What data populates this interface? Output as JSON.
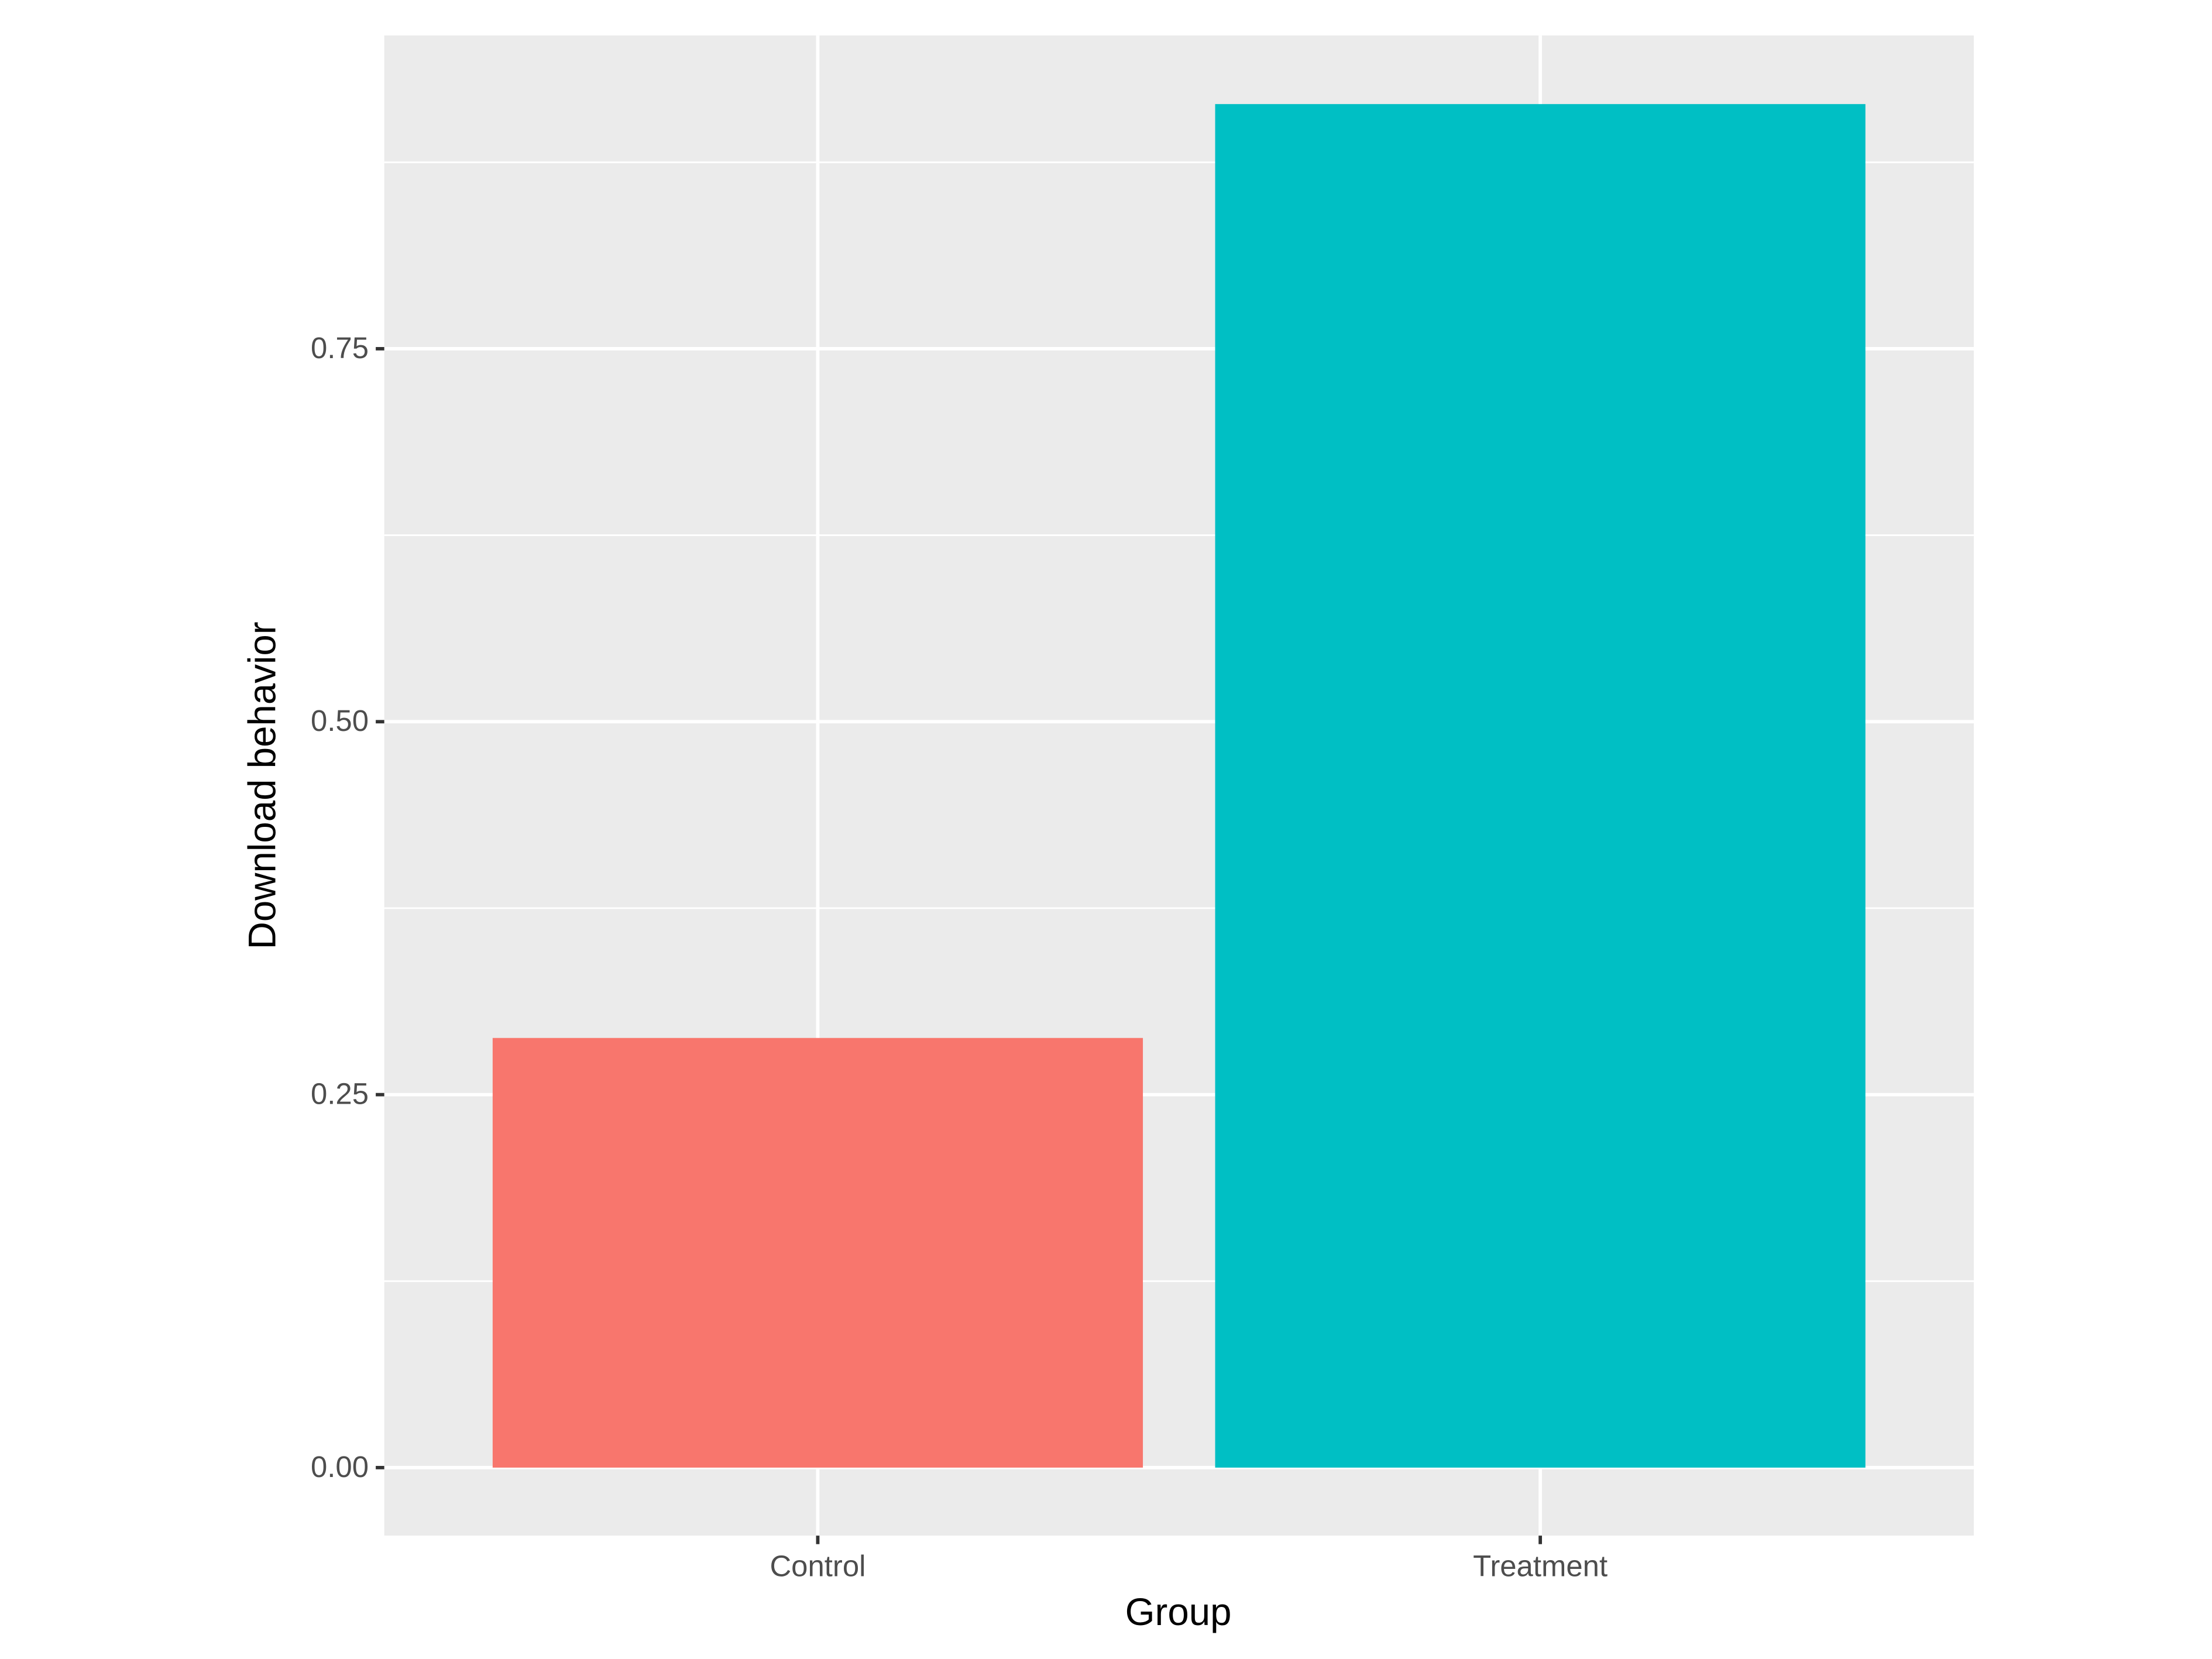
{
  "chart_data": {
    "type": "bar",
    "x_label": "Group",
    "y_label": "Download behavior",
    "categories": [
      "Control",
      "Treatment"
    ],
    "values": [
      0.288,
      0.914
    ],
    "colors": [
      "#F8766D",
      "#00BFC4"
    ],
    "ylim": [
      -0.0456,
      0.96
    ],
    "yticks": [
      {
        "value": 0,
        "label": "0.00"
      },
      {
        "value": 0.25,
        "label": "0.25"
      },
      {
        "value": 0.5,
        "label": "0.50"
      },
      {
        "value": 0.75,
        "label": "0.75"
      }
    ],
    "grid": true
  }
}
